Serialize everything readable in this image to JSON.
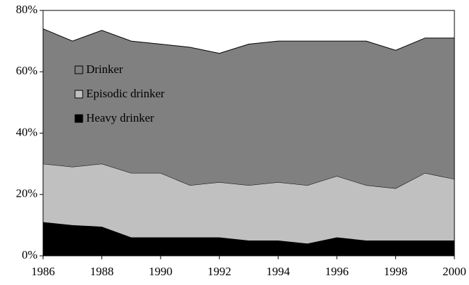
{
  "chart_data": {
    "type": "stacked_area",
    "x": [
      1986,
      1987,
      1988,
      1989,
      1990,
      1991,
      1992,
      1993,
      1994,
      1995,
      1996,
      1997,
      1998,
      1999,
      2000
    ],
    "series": [
      {
        "name": "Heavy drinker",
        "color": "#000000",
        "values": [
          11,
          10,
          9.5,
          6,
          6,
          6,
          6,
          5,
          5,
          4,
          6,
          5,
          5,
          5,
          5
        ]
      },
      {
        "name": "Episodic drinker",
        "color": "#c0c0c0",
        "values": [
          19,
          19,
          20.5,
          21,
          21,
          17,
          18,
          18,
          19,
          19,
          20,
          18,
          17,
          22,
          20
        ]
      },
      {
        "name": "Drinker",
        "color": "#808080",
        "values": [
          44,
          41,
          43.5,
          43,
          42,
          45,
          42,
          46,
          46,
          47,
          44,
          47,
          45,
          44,
          46
        ]
      }
    ],
    "xlim": [
      1986,
      2000
    ],
    "xticks": [
      1986,
      1988,
      1990,
      1992,
      1994,
      1996,
      1998,
      2000
    ],
    "ylim": [
      0,
      80
    ],
    "yticks": [
      {
        "value": 0,
        "label": "0%"
      },
      {
        "value": 20,
        "label": "20%"
      },
      {
        "value": 40,
        "label": "40%"
      },
      {
        "value": 60,
        "label": "60%"
      },
      {
        "value": 80,
        "label": "80%"
      }
    ]
  }
}
